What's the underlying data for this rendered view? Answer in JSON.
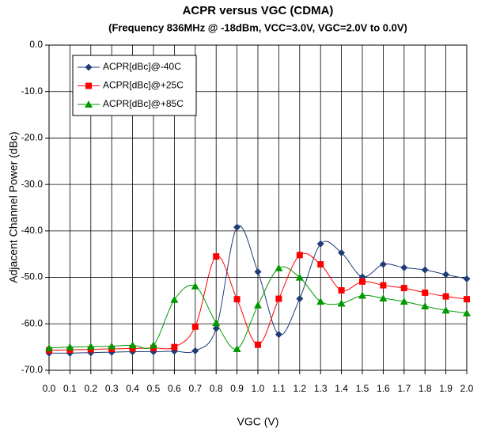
{
  "chart_data": {
    "type": "line",
    "title": "ACPR versus VGC (CDMA)",
    "subtitle": "(Frequency 836MHz @ -18dBm, VCC=3.0V, VGC=2.0V to 0.0V)",
    "xlabel": "VGC (V)",
    "ylabel": "Adjacent Channel Power (dBc)",
    "x": [
      0,
      0.1,
      0.2,
      0.3,
      0.4,
      0.5,
      0.6,
      0.7,
      0.8,
      0.9,
      1.0,
      1.1,
      1.2,
      1.3,
      1.4,
      1.5,
      1.6,
      1.7,
      1.8,
      1.9,
      2.0
    ],
    "series": [
      {
        "name": "ACPR[dBc]@-40C",
        "color": "#1f3c78",
        "marker": "diamond",
        "values": [
          -66.3,
          -66.3,
          -66.2,
          -66.1,
          -66.0,
          -66.0,
          -65.9,
          -65.8,
          -61.0,
          -39.2,
          -48.8,
          -62.3,
          -54.6,
          -42.8,
          -44.7,
          -49.9,
          -47.2,
          -47.9,
          -48.4,
          -49.4,
          -50.3
        ]
      },
      {
        "name": "ACPR[dBc]@+25C",
        "color": "#ff0000",
        "marker": "square",
        "values": [
          -65.7,
          -65.6,
          -65.5,
          -65.4,
          -65.3,
          -65.2,
          -65.0,
          -60.6,
          -45.5,
          -54.7,
          -64.5,
          -54.6,
          -45.2,
          -47.2,
          -52.8,
          -50.9,
          -51.7,
          -52.3,
          -53.3,
          -54.1,
          -54.7
        ]
      },
      {
        "name": "ACPR[dBc]@+85C",
        "color": "#009900",
        "marker": "triangle",
        "values": [
          -65.2,
          -65.0,
          -64.9,
          -64.8,
          -64.6,
          -64.6,
          -54.8,
          -51.9,
          -59.8,
          -65.4,
          -56.0,
          -48.0,
          -50.0,
          -55.2,
          -55.6,
          -53.9,
          -54.5,
          -55.2,
          -56.2,
          -57.1,
          -57.7
        ]
      }
    ],
    "xlim": [
      0,
      2.0
    ],
    "xticks": [
      {
        "value": 0,
        "label": "0.0"
      },
      0.1,
      0.2,
      0.3,
      0.4,
      0.5,
      0.6,
      0.7,
      0.8,
      0.9,
      {
        "value": 1,
        "label": "1.0"
      },
      1.1,
      1.2,
      1.3,
      1.4,
      1.5,
      1.6,
      1.7,
      1.8,
      1.9,
      {
        "value": 2,
        "label": "2.0"
      }
    ],
    "ylim": [
      -70,
      0
    ],
    "yticks": [
      {
        "value": 0,
        "label": "0.0"
      },
      {
        "value": -10,
        "label": "-10.0"
      },
      {
        "value": -20,
        "label": "-20.0"
      },
      {
        "value": -30,
        "label": "-30.0"
      },
      {
        "value": -40,
        "label": "-40.0"
      },
      {
        "value": -50,
        "label": "-50.0"
      },
      {
        "value": -60,
        "label": "-60.0"
      },
      {
        "value": -70,
        "label": "-70.0"
      }
    ],
    "grid": true,
    "legend": "upper left"
  }
}
